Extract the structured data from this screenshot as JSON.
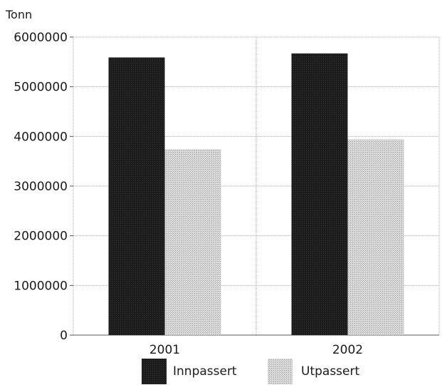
{
  "chart_data": {
    "type": "bar",
    "ylabel": "Tonn",
    "categories": [
      "2001",
      "2002"
    ],
    "series": [
      {
        "name": "Innpassert",
        "values": [
          5590000,
          5670000
        ],
        "color": "#1c1c1c"
      },
      {
        "name": "Utpassert",
        "values": [
          3740000,
          3940000
        ],
        "color": "#cfcfcf"
      }
    ],
    "ylim": [
      0,
      6000000
    ],
    "yticks": [
      0,
      1000000,
      2000000,
      3000000,
      4000000,
      5000000,
      6000000
    ],
    "ytick_labels": [
      "0",
      "1000000",
      "2000000",
      "3000000",
      "4000000",
      "5000000",
      "6000000"
    ],
    "grid": true,
    "legend_position": "bottom"
  }
}
